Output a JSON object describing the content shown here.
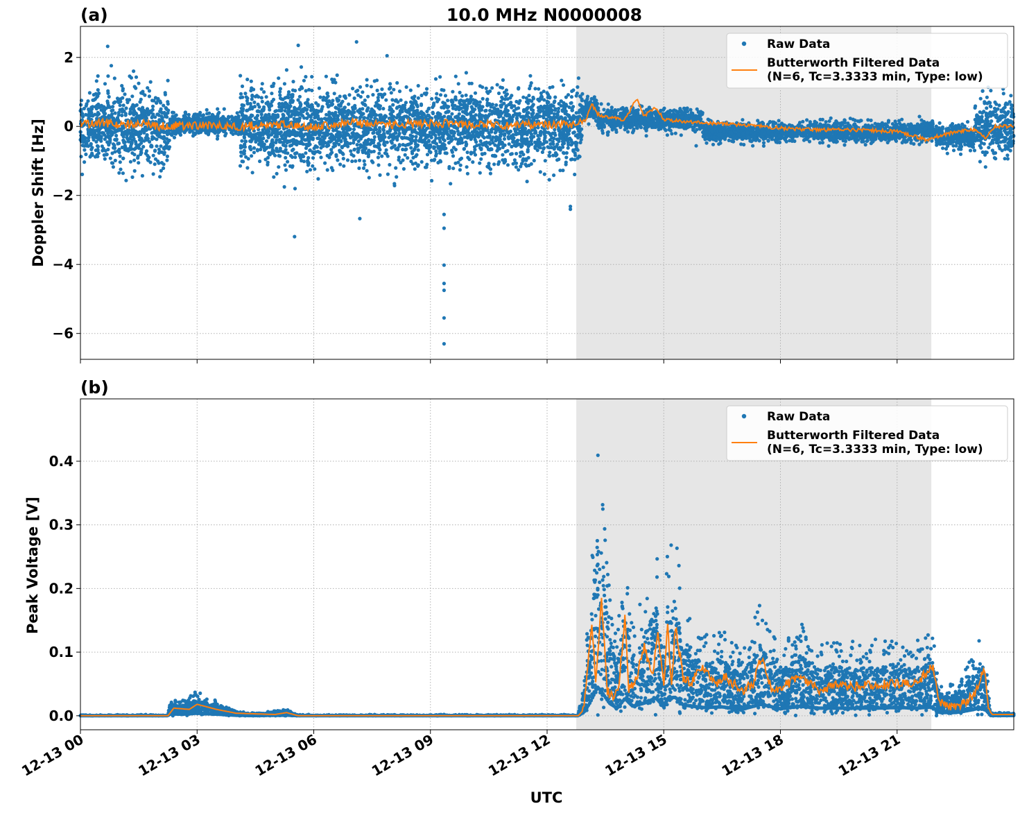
{
  "figure_title": "10.0 MHz N0000008",
  "colors": {
    "raw": "#1f77b4",
    "filtered": "#ff7f0e",
    "shade": "#e6e6e6",
    "grid": "#b0b0b0"
  },
  "chart_data": [
    {
      "type": "scatter",
      "panel_label": "(a)",
      "title": "10.0 MHz N0000008",
      "xlabel": "",
      "ylabel": "Doppler Shift [Hz]",
      "xlim_hours": [
        0,
        24
      ],
      "ylim": [
        -6.75,
        2.9
      ],
      "yticks": [
        2,
        0,
        -2,
        -4,
        -6
      ],
      "ytick_labels": [
        "2",
        "0",
        "−2",
        "−4",
        "−6"
      ],
      "grid": true,
      "legend": "top-right",
      "shaded_region_hours": [
        12.75,
        21.88
      ],
      "series": [
        {
          "name": "Raw Data",
          "style": "points",
          "segments": [
            {
              "start": 0.0,
              "end": 2.3,
              "center": 0.0,
              "spread": 1.2
            },
            {
              "start": 2.3,
              "end": 4.1,
              "center": 0.05,
              "spread": 0.35
            },
            {
              "start": 4.1,
              "end": 12.9,
              "center": 0.0,
              "spread": 1.3
            },
            {
              "start": 12.9,
              "end": 13.3,
              "center": 0.5,
              "spread": 0.35
            },
            {
              "start": 13.3,
              "end": 16.0,
              "center": 0.2,
              "spread": 0.35
            },
            {
              "start": 16.0,
              "end": 22.0,
              "center": -0.15,
              "spread": 0.3
            },
            {
              "start": 22.0,
              "end": 23.0,
              "center": -0.3,
              "spread": 0.4
            },
            {
              "start": 23.0,
              "end": 24.0,
              "center": 0.0,
              "spread": 0.9
            }
          ],
          "outliers": [
            {
              "x": 9.35,
              "y": -6.3
            },
            {
              "x": 9.35,
              "y": -5.55
            },
            {
              "x": 9.35,
              "y": -4.75
            },
            {
              "x": 9.35,
              "y": -4.55
            },
            {
              "x": 9.35,
              "y": -4.02
            },
            {
              "x": 9.35,
              "y": -2.95
            },
            {
              "x": 9.35,
              "y": -2.55
            },
            {
              "x": 12.6,
              "y": -2.4
            },
            {
              "x": 12.6,
              "y": -2.32
            },
            {
              "x": 7.1,
              "y": 2.45
            },
            {
              "x": 5.6,
              "y": 2.35
            },
            {
              "x": 0.7,
              "y": 2.32
            }
          ]
        },
        {
          "name": "Butterworth Filtered Data\n(N=6, Tc=3.3333 min, Type: low)",
          "style": "line",
          "points": [
            [
              0,
              0.05
            ],
            [
              0.5,
              0.1
            ],
            [
              1.0,
              0.05
            ],
            [
              1.5,
              0.1
            ],
            [
              2.0,
              0.0
            ],
            [
              2.3,
              0.02
            ],
            [
              3.0,
              0.03
            ],
            [
              4.0,
              0.0
            ],
            [
              5.0,
              0.05
            ],
            [
              6.0,
              0.0
            ],
            [
              7.0,
              0.1
            ],
            [
              8.0,
              0.05
            ],
            [
              9.0,
              0.1
            ],
            [
              10.0,
              0.05
            ],
            [
              11.0,
              0.05
            ],
            [
              12.0,
              0.05
            ],
            [
              12.8,
              0.05
            ],
            [
              13.0,
              0.2
            ],
            [
              13.15,
              0.65
            ],
            [
              13.3,
              0.35
            ],
            [
              13.6,
              0.25
            ],
            [
              14.0,
              0.2
            ],
            [
              14.3,
              0.8
            ],
            [
              14.5,
              0.3
            ],
            [
              14.8,
              0.55
            ],
            [
              15.0,
              0.2
            ],
            [
              16.0,
              0.1
            ],
            [
              17.0,
              0.05
            ],
            [
              18.0,
              -0.05
            ],
            [
              19.0,
              -0.1
            ],
            [
              20.0,
              -0.1
            ],
            [
              21.0,
              -0.15
            ],
            [
              21.8,
              -0.4
            ],
            [
              22.0,
              -0.3
            ],
            [
              22.5,
              -0.15
            ],
            [
              23.0,
              -0.1
            ],
            [
              23.3,
              -0.35
            ],
            [
              23.5,
              0.0
            ],
            [
              24.0,
              0.0
            ]
          ]
        }
      ]
    },
    {
      "type": "scatter",
      "panel_label": "(b)",
      "title": "",
      "xlabel": "UTC",
      "ylabel": "Peak Voltage [V]",
      "xlim_hours": [
        0,
        24
      ],
      "ylim": [
        -0.022,
        0.498
      ],
      "yticks": [
        0.0,
        0.1,
        0.2,
        0.3,
        0.4
      ],
      "ytick_labels": [
        "0.0",
        "0.1",
        "0.2",
        "0.3",
        "0.4"
      ],
      "xticks_hours": [
        0,
        3,
        6,
        9,
        12,
        15,
        18,
        21
      ],
      "xtick_labels": [
        "12-13 00",
        "12-13 03",
        "12-13 06",
        "12-13 09",
        "12-13 12",
        "12-13 15",
        "12-13 18",
        "12-13 21"
      ],
      "grid": true,
      "legend": "top-right",
      "shaded_region_hours": [
        12.75,
        21.88
      ],
      "series": [
        {
          "name": "Raw Data",
          "style": "points",
          "envelope": [
            [
              0,
              0.002
            ],
            [
              2.25,
              0.002
            ],
            [
              2.3,
              0.03
            ],
            [
              2.6,
              0.025
            ],
            [
              3.0,
              0.04
            ],
            [
              3.5,
              0.025
            ],
            [
              4.0,
              0.008
            ],
            [
              4.5,
              0.004
            ],
            [
              5.3,
              0.01
            ],
            [
              5.6,
              0.002
            ],
            [
              12.8,
              0.002
            ],
            [
              12.95,
              0.06
            ],
            [
              13.1,
              0.2
            ],
            [
              13.3,
              0.45
            ],
            [
              13.4,
              0.38
            ],
            [
              13.6,
              0.2
            ],
            [
              13.8,
              0.12
            ],
            [
              14.0,
              0.27
            ],
            [
              14.2,
              0.15
            ],
            [
              14.5,
              0.2
            ],
            [
              14.8,
              0.28
            ],
            [
              15.0,
              0.14
            ],
            [
              15.1,
              0.28
            ],
            [
              15.3,
              0.29
            ],
            [
              15.5,
              0.17
            ],
            [
              16.0,
              0.13
            ],
            [
              16.5,
              0.14
            ],
            [
              17.0,
              0.1
            ],
            [
              17.5,
              0.18
            ],
            [
              18.0,
              0.11
            ],
            [
              18.5,
              0.15
            ],
            [
              19.0,
              0.12
            ],
            [
              19.5,
              0.12
            ],
            [
              20.0,
              0.12
            ],
            [
              20.5,
              0.12
            ],
            [
              21.0,
              0.13
            ],
            [
              21.5,
              0.12
            ],
            [
              21.9,
              0.14
            ],
            [
              22.1,
              0.05
            ],
            [
              22.5,
              0.05
            ],
            [
              22.8,
              0.08
            ],
            [
              23.2,
              0.13
            ],
            [
              23.3,
              0.08
            ],
            [
              23.4,
              0.005
            ],
            [
              24.0,
              0.005
            ]
          ]
        },
        {
          "name": "Butterworth Filtered Data\n(N=6, Tc=3.3333 min, Type: low)",
          "style": "line",
          "points": [
            [
              0,
              0.0
            ],
            [
              2.25,
              0.0
            ],
            [
              2.4,
              0.012
            ],
            [
              2.8,
              0.01
            ],
            [
              3.0,
              0.018
            ],
            [
              3.5,
              0.01
            ],
            [
              4.0,
              0.004
            ],
            [
              5.0,
              0.002
            ],
            [
              5.3,
              0.005
            ],
            [
              5.6,
              0.0
            ],
            [
              12.8,
              0.0
            ],
            [
              12.95,
              0.01
            ],
            [
              13.05,
              0.08
            ],
            [
              13.15,
              0.14
            ],
            [
              13.25,
              0.06
            ],
            [
              13.4,
              0.18
            ],
            [
              13.55,
              0.04
            ],
            [
              13.7,
              0.03
            ],
            [
              13.85,
              0.05
            ],
            [
              14.0,
              0.155
            ],
            [
              14.1,
              0.04
            ],
            [
              14.3,
              0.06
            ],
            [
              14.5,
              0.11
            ],
            [
              14.7,
              0.06
            ],
            [
              14.85,
              0.13
            ],
            [
              15.0,
              0.05
            ],
            [
              15.1,
              0.14
            ],
            [
              15.2,
              0.05
            ],
            [
              15.3,
              0.14
            ],
            [
              15.5,
              0.06
            ],
            [
              15.7,
              0.05
            ],
            [
              16.0,
              0.08
            ],
            [
              16.3,
              0.05
            ],
            [
              16.6,
              0.06
            ],
            [
              17.0,
              0.04
            ],
            [
              17.3,
              0.05
            ],
            [
              17.5,
              0.09
            ],
            [
              17.8,
              0.04
            ],
            [
              18.2,
              0.05
            ],
            [
              18.5,
              0.06
            ],
            [
              19.0,
              0.04
            ],
            [
              19.5,
              0.05
            ],
            [
              20.0,
              0.045
            ],
            [
              20.5,
              0.05
            ],
            [
              21.0,
              0.05
            ],
            [
              21.5,
              0.05
            ],
            [
              21.9,
              0.08
            ],
            [
              22.1,
              0.02
            ],
            [
              22.5,
              0.015
            ],
            [
              23.0,
              0.03
            ],
            [
              23.25,
              0.075
            ],
            [
              23.35,
              0.01
            ],
            [
              23.45,
              0.002
            ],
            [
              24.0,
              0.002
            ]
          ]
        }
      ]
    }
  ]
}
